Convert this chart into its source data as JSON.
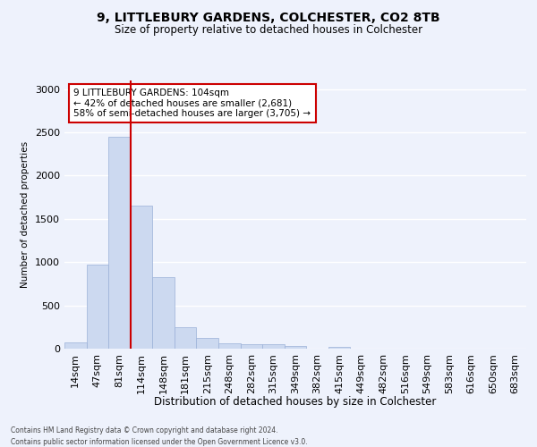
{
  "title1": "9, LITTLEBURY GARDENS, COLCHESTER, CO2 8TB",
  "title2": "Size of property relative to detached houses in Colchester",
  "xlabel": "Distribution of detached houses by size in Colchester",
  "ylabel": "Number of detached properties",
  "categories": [
    "14sqm",
    "47sqm",
    "81sqm",
    "114sqm",
    "148sqm",
    "181sqm",
    "215sqm",
    "248sqm",
    "282sqm",
    "315sqm",
    "349sqm",
    "382sqm",
    "415sqm",
    "449sqm",
    "482sqm",
    "516sqm",
    "549sqm",
    "583sqm",
    "616sqm",
    "650sqm",
    "683sqm"
  ],
  "values": [
    75,
    975,
    2450,
    1650,
    825,
    250,
    125,
    60,
    55,
    55,
    30,
    0,
    25,
    0,
    0,
    0,
    0,
    0,
    0,
    0,
    0
  ],
  "bar_color": "#ccd9f0",
  "bar_edge_color": "#9ab0d8",
  "vline_color": "#cc0000",
  "annotation_text": "9 LITTLEBURY GARDENS: 104sqm\n← 42% of detached houses are smaller (2,681)\n58% of semi-detached houses are larger (3,705) →",
  "annotation_box_color": "#ffffff",
  "annotation_box_edge_color": "#cc0000",
  "ylim": [
    0,
    3100
  ],
  "yticks": [
    0,
    500,
    1000,
    1500,
    2000,
    2500,
    3000
  ],
  "background_color": "#eef2fc",
  "grid_color": "#ffffff",
  "footnote1": "Contains HM Land Registry data © Crown copyright and database right 2024.",
  "footnote2": "Contains public sector information licensed under the Open Government Licence v3.0."
}
